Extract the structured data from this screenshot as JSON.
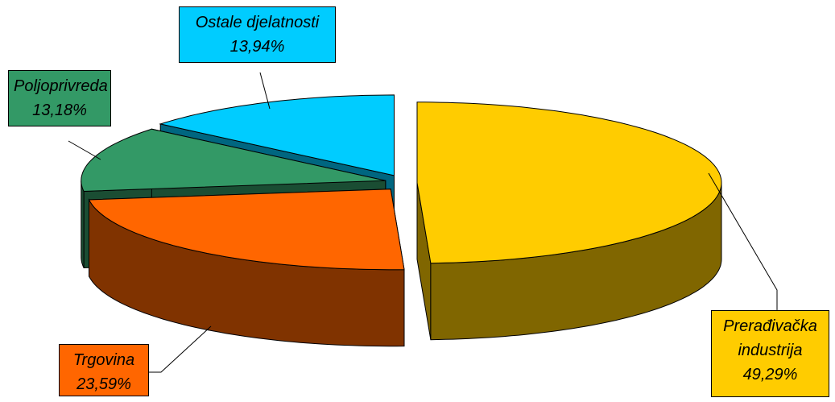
{
  "chart_data": {
    "type": "pie",
    "categories": [
      "Prerađivačka industrija",
      "Trgovina",
      "Poljoprivreda",
      "Ostale djelatnosti"
    ],
    "values": [
      49.29,
      23.59,
      13.18,
      13.94
    ],
    "value_labels": [
      "49,29%",
      "23,59%",
      "13,18%",
      "13,94%"
    ],
    "colors": [
      "#ffcc00",
      "#ff6600",
      "#339966",
      "#00ccff"
    ]
  }
}
